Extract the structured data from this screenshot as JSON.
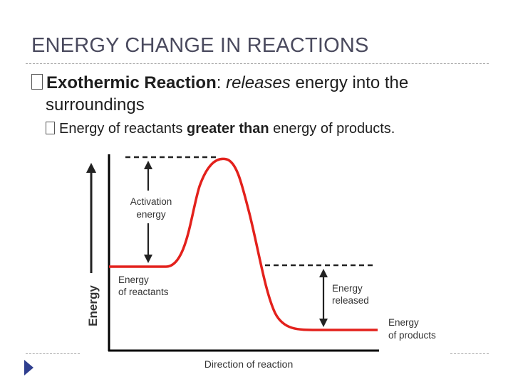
{
  "slide": {
    "title": "ENERGY CHANGE IN REACTIONS",
    "bullet1": {
      "term": "Exothermic Reaction",
      "colon": ":",
      "emph": "releases",
      "rest": "energy into the",
      "line2": "surroundings"
    },
    "bullet2": {
      "prefix": "Energy of reactants",
      "emph": "greater than",
      "suffix": "energy of products."
    }
  },
  "diagram": {
    "y_axis_label": "Energy",
    "x_axis_label": "Direction of reaction",
    "activation_label": [
      "Activation",
      "energy"
    ],
    "reactants_label": [
      "Energy",
      "of reactants"
    ],
    "released_label": [
      "Energy",
      "released"
    ],
    "products_label": [
      "Energy",
      "of products"
    ],
    "curve_color": "#e3211c",
    "axis_color": "#000000",
    "arrow_color": "#222222"
  },
  "nav": {
    "icon": "play-arrow-icon"
  }
}
